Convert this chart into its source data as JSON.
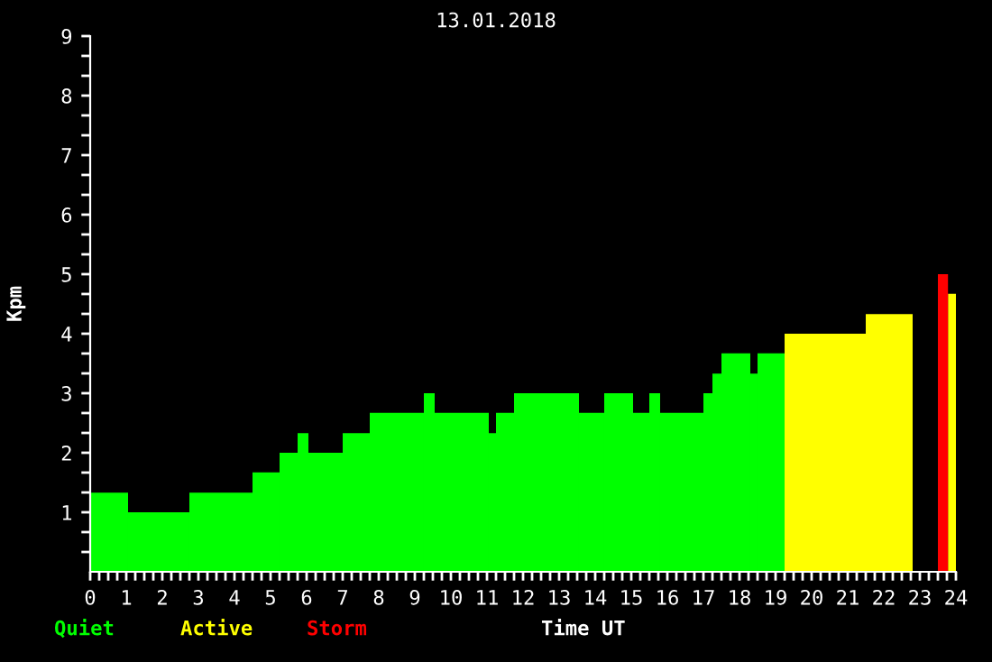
{
  "chart_data": {
    "type": "histogram",
    "title": "13.01.2018",
    "xlabel": "Time UT",
    "ylabel": "Kpm",
    "legend": "bottom",
    "grid": false,
    "bins": [
      0,
      1.05,
      2.75,
      4.5,
      5.25,
      5.75,
      6.05,
      7,
      7.75,
      9.25,
      9.55,
      11.05,
      11.25,
      11.75,
      13.55,
      14.25,
      15.05,
      15.5,
      15.8,
      17,
      17.25,
      17.5,
      18.3,
      18.5,
      19.25,
      21.5,
      22.8,
      23.5,
      23.78,
      24
    ],
    "series": [
      {
        "name": "Quiet",
        "color": "#00ff00",
        "values": [
          1.33,
          1,
          1.33,
          1.67,
          2,
          2.33,
          2,
          2.33,
          2.67,
          3,
          2.67,
          2.33,
          2.67,
          3,
          2.67,
          3,
          2.67,
          3,
          2.67,
          3,
          3.33,
          3.67,
          3.33,
          3.67,
          null,
          null,
          null,
          null,
          null
        ]
      },
      {
        "name": "Active",
        "color": "#ffff00",
        "values": [
          null,
          null,
          null,
          null,
          null,
          null,
          null,
          null,
          null,
          null,
          null,
          null,
          null,
          null,
          null,
          null,
          null,
          null,
          null,
          null,
          null,
          null,
          null,
          null,
          4,
          4.33,
          null,
          null,
          4.67
        ]
      },
      {
        "name": "Storm",
        "color": "#ff0000",
        "values": [
          null,
          null,
          null,
          null,
          null,
          null,
          null,
          null,
          null,
          null,
          null,
          null,
          null,
          null,
          null,
          null,
          null,
          null,
          null,
          null,
          null,
          null,
          null,
          null,
          null,
          null,
          null,
          5,
          null
        ]
      }
    ],
    "xlim": [
      0,
      24
    ],
    "ylim": [
      0,
      9
    ],
    "xticks": [
      0,
      {
        "value": 0.25,
        "label": null
      },
      {
        "value": 0.5,
        "label": null
      },
      {
        "value": 0.75,
        "label": null
      },
      1,
      {
        "value": 1.25,
        "label": null
      },
      {
        "value": 1.5,
        "label": null
      },
      {
        "value": 1.75,
        "label": null
      },
      2,
      {
        "value": 2.25,
        "label": null
      },
      {
        "value": 2.5,
        "label": null
      },
      {
        "value": 2.75,
        "label": null
      },
      3,
      {
        "value": 3.25,
        "label": null
      },
      {
        "value": 3.5,
        "label": null
      },
      {
        "value": 3.75,
        "label": null
      },
      4,
      {
        "value": 4.25,
        "label": null
      },
      {
        "value": 4.5,
        "label": null
      },
      {
        "value": 4.75,
        "label": null
      },
      5,
      {
        "value": 5.25,
        "label": null
      },
      {
        "value": 5.5,
        "label": null
      },
      {
        "value": 5.75,
        "label": null
      },
      6,
      {
        "value": 6.25,
        "label": null
      },
      {
        "value": 6.5,
        "label": null
      },
      {
        "value": 6.75,
        "label": null
      },
      7,
      {
        "value": 7.25,
        "label": null
      },
      {
        "value": 7.5,
        "label": null
      },
      {
        "value": 7.75,
        "label": null
      },
      8,
      {
        "value": 8.25,
        "label": null
      },
      {
        "value": 8.5,
        "label": null
      },
      {
        "value": 8.75,
        "label": null
      },
      9,
      {
        "value": 9.25,
        "label": null
      },
      {
        "value": 9.5,
        "label": null
      },
      {
        "value": 9.75,
        "label": null
      },
      10,
      {
        "value": 10.25,
        "label": null
      },
      {
        "value": 10.5,
        "label": null
      },
      {
        "value": 10.75,
        "label": null
      },
      11,
      {
        "value": 11.25,
        "label": null
      },
      {
        "value": 11.5,
        "label": null
      },
      {
        "value": 11.75,
        "label": null
      },
      12,
      {
        "value": 12.25,
        "label": null
      },
      {
        "value": 12.5,
        "label": null
      },
      {
        "value": 12.75,
        "label": null
      },
      13,
      {
        "value": 13.25,
        "label": null
      },
      {
        "value": 13.5,
        "label": null
      },
      {
        "value": 13.75,
        "label": null
      },
      14,
      {
        "value": 14.25,
        "label": null
      },
      {
        "value": 14.5,
        "label": null
      },
      {
        "value": 14.75,
        "label": null
      },
      15,
      {
        "value": 15.25,
        "label": null
      },
      {
        "value": 15.5,
        "label": null
      },
      {
        "value": 15.75,
        "label": null
      },
      16,
      {
        "value": 16.25,
        "label": null
      },
      {
        "value": 16.5,
        "label": null
      },
      {
        "value": 16.75,
        "label": null
      },
      17,
      {
        "value": 17.25,
        "label": null
      },
      {
        "value": 17.5,
        "label": null
      },
      {
        "value": 17.75,
        "label": null
      },
      18,
      {
        "value": 18.25,
        "label": null
      },
      {
        "value": 18.5,
        "label": null
      },
      {
        "value": 18.75,
        "label": null
      },
      19,
      {
        "value": 19.25,
        "label": null
      },
      {
        "value": 19.5,
        "label": null
      },
      {
        "value": 19.75,
        "label": null
      },
      20,
      {
        "value": 20.25,
        "label": null
      },
      {
        "value": 20.5,
        "label": null
      },
      {
        "value": 20.75,
        "label": null
      },
      21,
      {
        "value": 21.25,
        "label": null
      },
      {
        "value": 21.5,
        "label": null
      },
      {
        "value": 21.75,
        "label": null
      },
      22,
      {
        "value": 22.25,
        "label": null
      },
      {
        "value": 22.5,
        "label": null
      },
      {
        "value": 22.75,
        "label": null
      },
      23,
      {
        "value": 23.25,
        "label": null
      },
      {
        "value": 23.5,
        "label": null
      },
      {
        "value": 23.75,
        "label": null
      },
      24
    ],
    "yticks": [
      {
        "value": 0.333,
        "label": null
      },
      {
        "value": 0.667,
        "label": null
      },
      1,
      {
        "value": 1.333,
        "label": null
      },
      {
        "value": 1.667,
        "label": null
      },
      2,
      {
        "value": 2.333,
        "label": null
      },
      {
        "value": 2.667,
        "label": null
      },
      3,
      {
        "value": 3.333,
        "label": null
      },
      {
        "value": 3.667,
        "label": null
      },
      4,
      {
        "value": 4.333,
        "label": null
      },
      {
        "value": 4.667,
        "label": null
      },
      5,
      {
        "value": 5.333,
        "label": null
      },
      {
        "value": 5.667,
        "label": null
      },
      6,
      {
        "value": 6.333,
        "label": null
      },
      {
        "value": 6.667,
        "label": null
      },
      7,
      {
        "value": 7.333,
        "label": null
      },
      {
        "value": 7.667,
        "label": null
      },
      8,
      {
        "value": 8.333,
        "label": null
      },
      {
        "value": 8.667,
        "label": null
      },
      9
    ]
  }
}
